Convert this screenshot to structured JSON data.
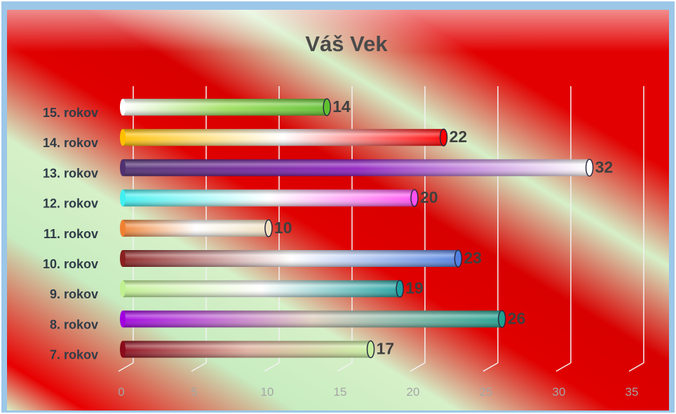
{
  "chart_data": {
    "type": "bar",
    "orientation": "horizontal",
    "title": "Váš Vek",
    "categories": [
      "7. rokov",
      "8. rokov",
      "9. rokov",
      "10. rokov",
      "11. rokov",
      "12. rokov",
      "13. rokov",
      "14. rokov",
      "15. rokov"
    ],
    "values": [
      17,
      26,
      19,
      23,
      10,
      20,
      32,
      22,
      14
    ],
    "xlim": [
      0,
      35
    ],
    "xticks": [
      "0",
      "5",
      "10",
      "15",
      "20",
      "25",
      "30",
      "35"
    ],
    "grid": true,
    "legend": "none",
    "bar_colors": [
      [
        "#8b0a1a",
        "#e0b0a0",
        "#c8f0a0"
      ],
      [
        "#a000e0",
        "#e0d0c0",
        "#20a090"
      ],
      [
        "#c0f090",
        "#ffffff",
        "#20a0a0"
      ],
      [
        "#8a2020",
        "#ffffff",
        "#5080e0"
      ],
      [
        "#f08030",
        "#ffffff",
        "#f0e0c0"
      ],
      [
        "#40f0f0",
        "#ffffff",
        "#ff50f0"
      ],
      [
        "#503070",
        "#9020c0",
        "#ffffff"
      ],
      [
        "#ffc000",
        "#ffffff",
        "#ff0000"
      ],
      [
        "#ffffff",
        "#a0e060",
        "#60c030"
      ]
    ],
    "background_colors": [
      "#cfeeca",
      "#e00000"
    ]
  }
}
